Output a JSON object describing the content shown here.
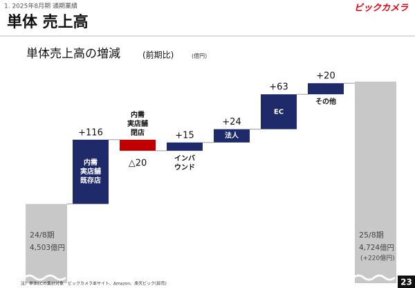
{
  "header": {
    "section": "1. 2025年8月期 通期業績",
    "logo": "ビックカメラ",
    "title": "単体 売上高",
    "footnote": "注）単体ECの集計対象　ビックカメラ本サイト、Amazon、楽天ビック(卸売)",
    "page": "23"
  },
  "chart_data": {
    "type": "waterfall",
    "title": "単体売上高の増減",
    "subtitle": "(前期比)",
    "unit": "(億円)",
    "categories": [
      [
        "24/8期"
      ],
      [
        "内需",
        "実店舗",
        "既存店"
      ],
      [
        "内需",
        "実店舗",
        "閉店"
      ],
      [
        "インバ",
        "ウンド"
      ],
      [
        "法人"
      ],
      [
        "EC"
      ],
      [
        "その他"
      ],
      [
        "25/8期"
      ]
    ],
    "values": [
      4503,
      116,
      -20,
      15,
      24,
      63,
      20,
      4724
    ],
    "value_labels": [
      "4,503億円",
      "+116",
      "△20",
      "+15",
      "+24",
      "+63",
      "+20",
      "4,724億円"
    ],
    "annotation": "(+220億円)",
    "colors": {
      "total": "#c8c8c8",
      "increase": "#1f2a6b",
      "decrease": "#c00000"
    },
    "ylim": [
      4360,
      4740
    ]
  }
}
